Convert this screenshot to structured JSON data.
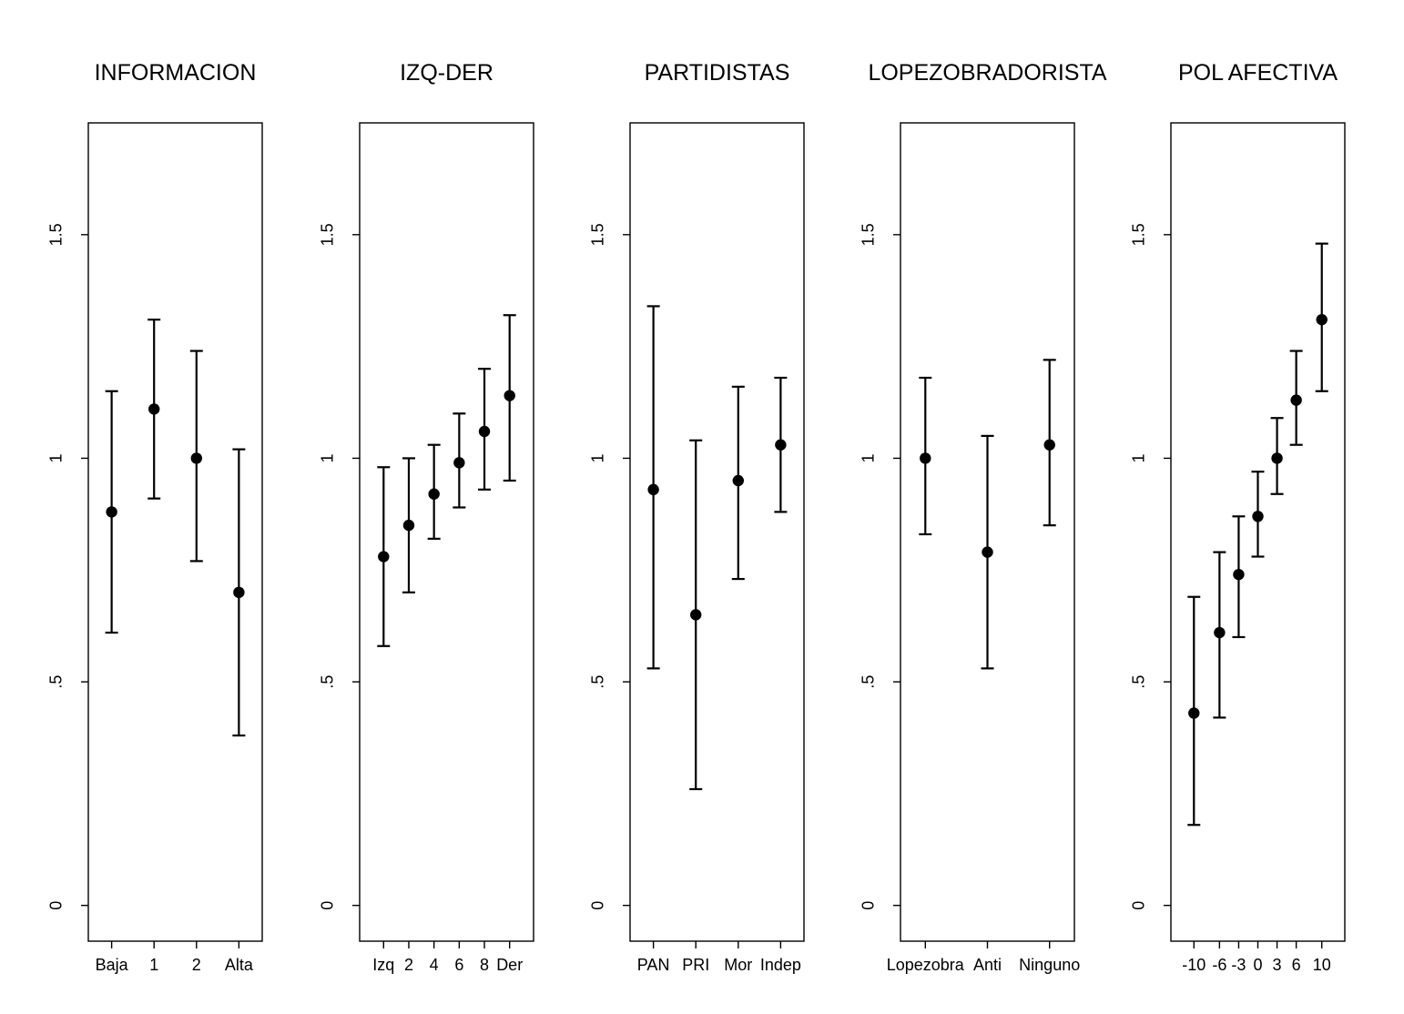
{
  "chart_data": [
    {
      "type": "scatter",
      "title": "INFORMACION",
      "xlabel": "",
      "ylabel": "",
      "ylim": [
        -0.08,
        1.75
      ],
      "yticks": [
        0,
        0.5,
        1,
        1.5
      ],
      "ytick_labels": [
        "0",
        ".5",
        "1",
        "1.5"
      ],
      "categories": [
        "Baja",
        "1",
        "2",
        "Alta"
      ],
      "x_positions": [
        1,
        2,
        3,
        4
      ],
      "xlim": [
        0.45,
        4.55
      ],
      "values": [
        0.88,
        1.11,
        1.0,
        0.7
      ],
      "lower": [
        0.61,
        0.91,
        0.77,
        0.38
      ],
      "upper": [
        1.15,
        1.31,
        1.24,
        1.02
      ]
    },
    {
      "type": "scatter",
      "title": "IZQ-DER",
      "xlabel": "",
      "ylabel": "",
      "ylim": [
        -0.08,
        1.75
      ],
      "yticks": [
        0,
        0.5,
        1,
        1.5
      ],
      "ytick_labels": [
        "0",
        ".5",
        "1",
        "1.5"
      ],
      "categories": [
        "Izq",
        "2",
        "4",
        "6",
        "8",
        "Der"
      ],
      "x_positions": [
        0,
        2,
        4,
        6,
        8,
        10
      ],
      "xlim": [
        -1.9,
        11.9
      ],
      "values": [
        0.78,
        0.85,
        0.92,
        0.99,
        1.06,
        1.14
      ],
      "lower": [
        0.58,
        0.7,
        0.82,
        0.89,
        0.93,
        0.95
      ],
      "upper": [
        0.98,
        1.0,
        1.03,
        1.1,
        1.2,
        1.32
      ]
    },
    {
      "type": "scatter",
      "title": "PARTIDISTAS",
      "xlabel": "",
      "ylabel": "",
      "ylim": [
        -0.08,
        1.75
      ],
      "yticks": [
        0,
        0.5,
        1,
        1.5
      ],
      "ytick_labels": [
        "0",
        ".5",
        "1",
        "1.5"
      ],
      "categories": [
        "PAN",
        "PRI",
        "Mor",
        "Indep"
      ],
      "x_positions": [
        1,
        2,
        3,
        4
      ],
      "xlim": [
        0.45,
        4.55
      ],
      "values": [
        0.93,
        0.65,
        0.95,
        1.03
      ],
      "lower": [
        0.53,
        0.26,
        0.73,
        0.88
      ],
      "upper": [
        1.34,
        1.04,
        1.16,
        1.18
      ]
    },
    {
      "type": "scatter",
      "title": "LOPEZOBRADORISTA",
      "xlabel": "",
      "ylabel": "",
      "ylim": [
        -0.08,
        1.75
      ],
      "yticks": [
        0,
        0.5,
        1,
        1.5
      ],
      "ytick_labels": [
        "0",
        ".5",
        "1",
        "1.5"
      ],
      "categories": [
        "Lopezobra",
        "Anti",
        "Ninguno"
      ],
      "x_positions": [
        1,
        2,
        3
      ],
      "xlim": [
        0.6,
        3.4
      ],
      "values": [
        1.0,
        0.79,
        1.03
      ],
      "lower": [
        0.83,
        0.53,
        0.85
      ],
      "upper": [
        1.18,
        1.05,
        1.22
      ]
    },
    {
      "type": "scatter",
      "title": "POL AFECTIVA",
      "xlabel": "",
      "ylabel": "",
      "ylim": [
        -0.08,
        1.75
      ],
      "yticks": [
        0,
        0.5,
        1,
        1.5
      ],
      "ytick_labels": [
        "0",
        ".5",
        "1",
        "1.5"
      ],
      "categories": [
        "-10",
        "-6",
        "-3",
        "0",
        "3",
        "6",
        "10"
      ],
      "x_positions": [
        -10,
        -6,
        -3,
        0,
        3,
        6,
        10
      ],
      "xlim": [
        -13.6,
        13.6
      ],
      "values": [
        0.43,
        0.61,
        0.74,
        0.87,
        1.0,
        1.13,
        1.31
      ],
      "lower": [
        0.18,
        0.42,
        0.6,
        0.78,
        0.92,
        1.03,
        1.15
      ],
      "upper": [
        0.69,
        0.79,
        0.87,
        0.97,
        1.09,
        1.24,
        1.48
      ]
    }
  ]
}
